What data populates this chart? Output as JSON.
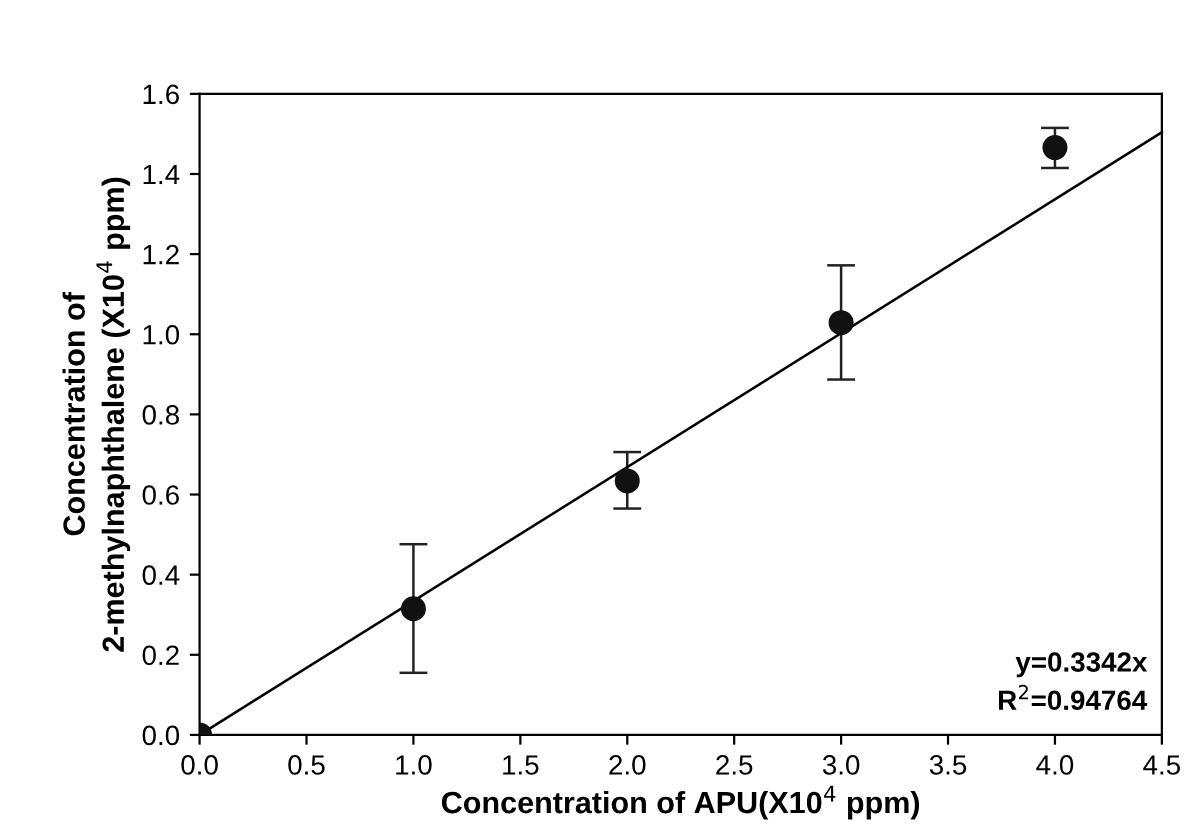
{
  "chart_data": {
    "type": "scatter",
    "xlabel": "Concentration of APU(X10$^{4}$ ppm)",
    "ylabel": "Concentration of\n2-methylnaphthalene (X10$^{4}$ ppm)",
    "x": [
      0,
      1,
      2,
      3,
      4
    ],
    "series": [
      {
        "color": "#111111",
        "marker": "circle",
        "values": [
          0,
          0.315,
          0.634,
          1.029,
          1.466
        ],
        "errors": [
          null,
          [
            0.155,
            0.476
          ],
          [
            0.565,
            0.706
          ],
          [
            0.887,
            1.172
          ],
          [
            1.415,
            1.515
          ]
        ]
      },
      {
        "type": "line",
        "color": "#000000",
        "marker": "none",
        "line_style": "solid",
        "x": [
          0,
          4.5
        ],
        "values": [
          0,
          1.504
        ]
      }
    ],
    "xlim": [
      0,
      4.5
    ],
    "ylim": [
      0,
      1.6
    ],
    "xticks": [
      {
        "value": 0,
        "label": "0.0"
      },
      0.5,
      {
        "value": 1,
        "label": "1.0"
      },
      1.5,
      {
        "value": 2,
        "label": "2.0"
      },
      2.5,
      {
        "value": 3,
        "label": "3.0"
      },
      3.5,
      {
        "value": 4,
        "label": "4.0"
      },
      4.5
    ],
    "yticks": [
      {
        "value": 0,
        "label": "0.0"
      },
      0.2,
      0.4,
      0.6,
      0.8,
      {
        "value": 1,
        "label": "1.0"
      },
      1.2,
      1.4,
      1.6
    ],
    "annotations": [
      "y=0.3342x",
      "R$^{2}$=0.94764"
    ],
    "grid": false
  }
}
